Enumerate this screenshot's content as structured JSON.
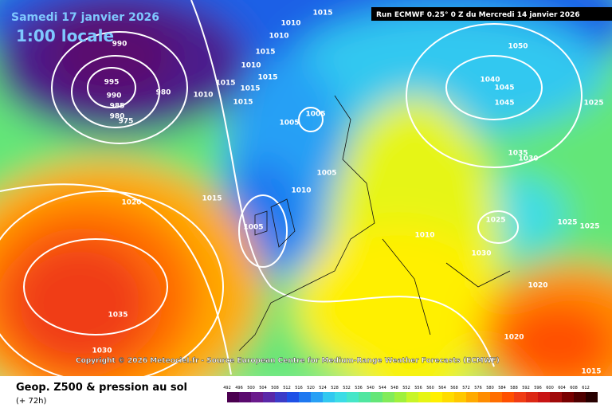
{
  "header": {
    "date": "Samedi 17 janvier 2026",
    "time": "1:00 locale",
    "run": "Run ECMWF 0.25° 0 Z du Mercredi 14 janvier 2026"
  },
  "copyright": "Copyright © 2026 Meteociel.fr - Source European Centre for Medium-Range Weather Forecasts (ECMWF)",
  "isobar_labels": [
    "995",
    "990",
    "985",
    "980",
    "975",
    "980",
    "990",
    "1015",
    "1010",
    "1010",
    "1015",
    "1010",
    "1015",
    "1015",
    "1015",
    "1015",
    "1005",
    "1005",
    "1005",
    "1010",
    "1005",
    "1015",
    "1020",
    "1035",
    "1030",
    "1050",
    "1040",
    "1045",
    "1045",
    "1035",
    "1030",
    "1025",
    "1030",
    "1020",
    "1020",
    "1015",
    "1025",
    "1025",
    "1025",
    "1010",
    "1010"
  ],
  "footer": {
    "title": "Geop. Z500 & pression au sol",
    "lead": "(+ 72h)"
  },
  "colorbar": {
    "ticks": [
      492,
      496,
      500,
      504,
      508,
      512,
      516,
      520,
      524,
      528,
      532,
      536,
      540,
      544,
      548,
      552,
      556,
      560,
      564,
      568,
      572,
      576,
      580,
      584,
      588,
      592,
      596,
      600,
      604,
      608,
      612
    ],
    "colors": [
      "#4b0050",
      "#5a0a6e",
      "#6a1a8c",
      "#5a28a8",
      "#3c3cc8",
      "#1e50e6",
      "#1e78f0",
      "#28a0f5",
      "#32c8f0",
      "#3cdce6",
      "#46e6c8",
      "#50e6a0",
      "#64e678",
      "#82eb5a",
      "#a0f03c",
      "#c8f528",
      "#e6f514",
      "#fff000",
      "#ffdc00",
      "#ffc800",
      "#ffaa00",
      "#ff8c00",
      "#ff6e00",
      "#ff5000",
      "#f03c14",
      "#dc2814",
      "#c81414",
      "#a00a0a",
      "#780000",
      "#500000",
      "#280000"
    ]
  }
}
